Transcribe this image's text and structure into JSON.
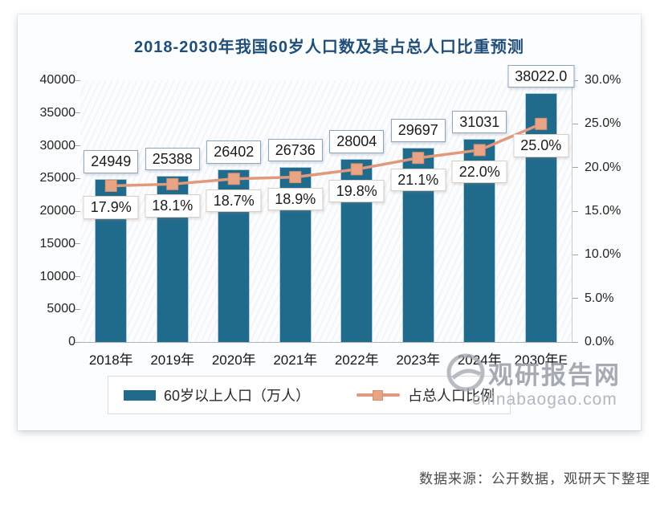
{
  "title": "2018-2030年我国60岁人口数及其占总人口比重预测",
  "chart_data": {
    "type": "bar",
    "subtype": "bar-with-line-overlay",
    "categories": [
      "2018年",
      "2019年",
      "2020年",
      "2021年",
      "2022年",
      "2023年",
      "2024年",
      "2030年E"
    ],
    "series": [
      {
        "name": "60岁以上人口（万人）",
        "type": "bar",
        "axis": "left",
        "values": [
          24949,
          25388,
          26402,
          26736,
          28004,
          29697,
          31031,
          38022
        ],
        "labels": [
          "24949",
          "25388",
          "26402",
          "26736",
          "28004",
          "29697",
          "31031",
          "38022.0"
        ],
        "color": "#206A8C"
      },
      {
        "name": "占总人口比例",
        "type": "line",
        "axis": "right",
        "values": [
          17.9,
          18.1,
          18.7,
          18.9,
          19.8,
          21.1,
          22.0,
          25.0
        ],
        "labels": [
          "17.9%",
          "18.1%",
          "18.7%",
          "18.9%",
          "19.8%",
          "21.1%",
          "22.0%",
          "25.0%"
        ],
        "color": "#E2997B"
      }
    ],
    "left_axis": {
      "min": 0,
      "max": 40000,
      "step": 5000,
      "ticks": [
        "40000",
        "35000",
        "30000",
        "25000",
        "20000",
        "15000",
        "10000",
        "5000",
        "0"
      ]
    },
    "right_axis": {
      "min": 0,
      "max": 30,
      "step": 5,
      "ticks": [
        "30.0%",
        "25.0%",
        "20.0%",
        "15.0%",
        "10.0%",
        "5.0%",
        "0.0%"
      ]
    },
    "grid": false,
    "legend_position": "bottom"
  },
  "legend": {
    "items": [
      {
        "label": "60岁以上人口（万人）",
        "marker": "bar",
        "color": "#206A8C"
      },
      {
        "label": "占总人口比例",
        "marker": "line-square",
        "color": "#E2997B"
      }
    ]
  },
  "watermark": {
    "site_name": "观研报告网",
    "site_url": "chinabaogao.com"
  },
  "source_note": "数据来源：公开数据，观研天下整理",
  "colors": {
    "bar": "#206A8C",
    "line": "#E2997B",
    "line_marker": "#E8A586",
    "line_marker_border": "#D98F6F",
    "title": "#1F4E79",
    "value_box_border": "#8CA6C0",
    "pct_box_border": "#D8CEC6"
  }
}
